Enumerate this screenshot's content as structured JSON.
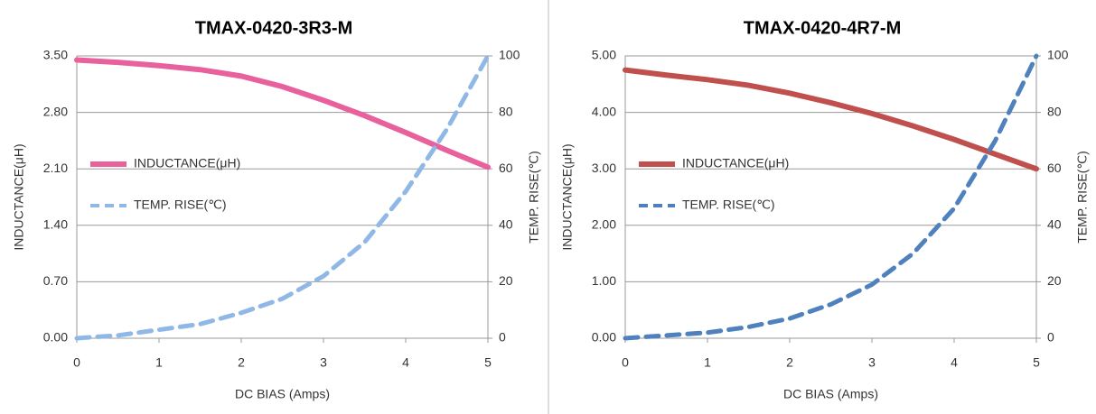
{
  "chart_data": [
    {
      "type": "line",
      "title": "TMAX-0420-3R3-M",
      "x_label": "DC BIAS  (Amps)",
      "y_label": "INDUCTANCE(μH)",
      "y2_label": "TEMP. RISE(℃)",
      "x": [
        0,
        0.5,
        1,
        1.5,
        2,
        2.5,
        3,
        3.5,
        4,
        4.5,
        5
      ],
      "xlim": [
        0,
        5
      ],
      "xticks": [
        0,
        1,
        2,
        3,
        4,
        5
      ],
      "ylim": [
        0,
        3.5
      ],
      "yticks": [
        {
          "value": 0,
          "label": "0.00"
        },
        {
          "value": 0.7,
          "label": "0.70"
        },
        {
          "value": 1.4,
          "label": "1.40"
        },
        {
          "value": 2.1,
          "label": "2.10"
        },
        {
          "value": 2.8,
          "label": "2.80"
        },
        {
          "value": 3.5,
          "label": "3.50"
        }
      ],
      "y2lim": [
        0,
        100
      ],
      "y2ticks": [
        0,
        20,
        40,
        60,
        80,
        100
      ],
      "grid": true,
      "legend": "upper left",
      "series": [
        {
          "name": "INDUCTANCE(μH)",
          "color": "#e8609c",
          "values": [
            3.45,
            3.42,
            3.38,
            3.33,
            3.25,
            3.12,
            2.95,
            2.76,
            2.55,
            2.33,
            2.12
          ]
        },
        {
          "name": "TEMP. RISE(℃)",
          "color": "#8fb8e6",
          "axis": "y2",
          "dashed": true,
          "values": [
            0,
            1,
            3,
            5,
            9,
            14,
            22,
            34,
            52,
            74,
            100
          ]
        }
      ]
    },
    {
      "type": "line",
      "title": "TMAX-0420-4R7-M",
      "x_label": "DC BIAS  (Amps)",
      "y_label": "INDUCTANCE(μH)",
      "y2_label": "TEMP. RISE(℃)",
      "x": [
        0,
        0.5,
        1,
        1.5,
        2,
        2.5,
        3,
        3.5,
        4,
        4.5,
        5
      ],
      "xlim": [
        0,
        5
      ],
      "xticks": [
        0,
        1,
        2,
        3,
        4,
        5
      ],
      "ylim": [
        0,
        5
      ],
      "yticks": [
        {
          "value": 0,
          "label": "0.00"
        },
        {
          "value": 1,
          "label": "1.00"
        },
        {
          "value": 2,
          "label": "2.00"
        },
        {
          "value": 3,
          "label": "3.00"
        },
        {
          "value": 4,
          "label": "4.00"
        },
        {
          "value": 5,
          "label": "5.00"
        }
      ],
      "y2lim": [
        0,
        100
      ],
      "y2ticks": [
        0,
        20,
        40,
        60,
        80,
        100
      ],
      "grid": true,
      "legend": "upper left",
      "series": [
        {
          "name": "INDUCTANCE(μH)",
          "color": "#c0504d",
          "values": [
            4.75,
            4.66,
            4.58,
            4.48,
            4.34,
            4.17,
            3.98,
            3.76,
            3.52,
            3.26,
            3.0
          ]
        },
        {
          "name": "TEMP. RISE(℃)",
          "color": "#4f81bd",
          "axis": "y2",
          "dashed": true,
          "values": [
            0,
            1,
            2,
            4,
            7,
            12,
            19,
            30,
            46,
            70,
            100
          ]
        }
      ]
    }
  ]
}
